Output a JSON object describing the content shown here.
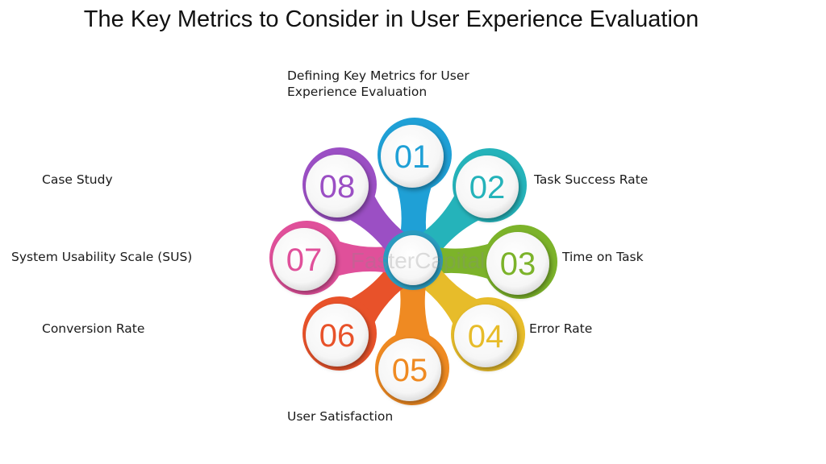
{
  "title": "The Key Metrics to Consider in User Experience Evaluation",
  "watermark": "FasterCapital",
  "items": [
    {
      "number": "01",
      "label": [
        "Defining Key Metrics for User",
        "Experience Evaluation"
      ],
      "color": "#1fa0d6"
    },
    {
      "number": "02",
      "label": [
        "Task Success Rate"
      ],
      "color": "#25b3ba"
    },
    {
      "number": "03",
      "label": [
        "Time on Task"
      ],
      "color": "#7cb32a"
    },
    {
      "number": "04",
      "label": [
        "Error Rate"
      ],
      "color": "#e7bc2a"
    },
    {
      "number": "05",
      "label": [
        "User Satisfaction"
      ],
      "color": "#ef8a22"
    },
    {
      "number": "06",
      "label": [
        "Conversion Rate"
      ],
      "color": "#e8522a"
    },
    {
      "number": "07",
      "label": [
        "System Usability Scale (SUS)"
      ],
      "color": "#e0509a"
    },
    {
      "number": "08",
      "label": [
        "Case Study"
      ],
      "color": "#9b4fc4"
    }
  ]
}
